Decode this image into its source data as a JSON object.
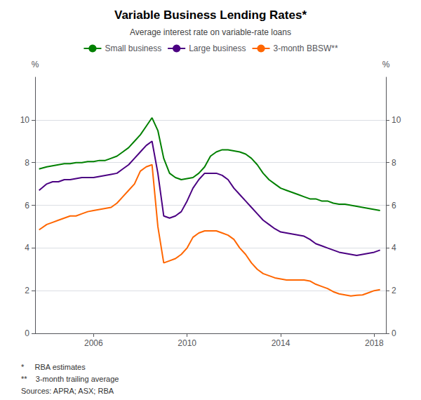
{
  "chart_data": {
    "type": "line",
    "title": "Variable Business Lending Rates*",
    "subtitle": "Average interest rate on variable-rate loans",
    "ylabel": "%",
    "y2label": "%",
    "footnotes": [
      "*     RBA estimates",
      "**    3-month trailing average",
      "Sources: APRA; ASX; RBA"
    ],
    "xlim": [
      2003.5,
      2018.5
    ],
    "xticks": [
      2006,
      2010,
      2014,
      2018
    ],
    "ylim": [
      0,
      12
    ],
    "yticks": [
      0,
      2,
      4,
      6,
      8,
      10
    ],
    "y2lim": [
      0,
      12
    ],
    "y2ticks": [
      0,
      2,
      4,
      6,
      8,
      10
    ],
    "grid": true,
    "legend": "top",
    "x": [
      2003.67,
      2004.0,
      2004.25,
      2004.5,
      2004.75,
      2005.0,
      2005.25,
      2005.5,
      2005.75,
      2006.0,
      2006.25,
      2006.5,
      2006.75,
      2007.0,
      2007.25,
      2007.5,
      2007.75,
      2008.0,
      2008.25,
      2008.5,
      2008.75,
      2009.0,
      2009.25,
      2009.5,
      2009.75,
      2010.0,
      2010.25,
      2010.5,
      2010.75,
      2011.0,
      2011.25,
      2011.5,
      2011.75,
      2012.0,
      2012.25,
      2012.5,
      2012.75,
      2013.0,
      2013.25,
      2013.5,
      2013.75,
      2014.0,
      2014.25,
      2014.5,
      2014.75,
      2015.0,
      2015.25,
      2015.5,
      2015.75,
      2016.0,
      2016.25,
      2016.5,
      2016.75,
      2017.0,
      2017.25,
      2017.5,
      2017.75,
      2018.0,
      2018.25
    ],
    "series": [
      {
        "name": "Small business",
        "color": "#008000",
        "values": [
          7.7,
          7.8,
          7.85,
          7.9,
          7.95,
          7.95,
          8.0,
          8.0,
          8.05,
          8.05,
          8.1,
          8.1,
          8.2,
          8.3,
          8.5,
          8.7,
          9.0,
          9.3,
          9.7,
          10.1,
          9.5,
          8.2,
          7.5,
          7.3,
          7.2,
          7.25,
          7.3,
          7.5,
          7.8,
          8.3,
          8.5,
          8.6,
          8.6,
          8.55,
          8.5,
          8.4,
          8.2,
          7.9,
          7.5,
          7.2,
          7.0,
          6.8,
          6.7,
          6.6,
          6.5,
          6.4,
          6.3,
          6.3,
          6.2,
          6.2,
          6.1,
          6.05,
          6.05,
          6.0,
          5.95,
          5.9,
          5.85,
          5.8,
          5.75
        ]
      },
      {
        "name": "Large business",
        "color": "#4B0082",
        "values": [
          6.7,
          7.0,
          7.1,
          7.1,
          7.2,
          7.2,
          7.25,
          7.3,
          7.3,
          7.3,
          7.35,
          7.4,
          7.45,
          7.5,
          7.7,
          7.9,
          8.2,
          8.5,
          8.8,
          9.0,
          7.5,
          5.5,
          5.4,
          5.5,
          5.7,
          6.2,
          6.8,
          7.2,
          7.5,
          7.5,
          7.5,
          7.4,
          7.2,
          6.8,
          6.5,
          6.2,
          5.9,
          5.6,
          5.3,
          5.1,
          4.9,
          4.75,
          4.7,
          4.65,
          4.6,
          4.55,
          4.4,
          4.2,
          4.1,
          4.0,
          3.9,
          3.8,
          3.75,
          3.7,
          3.65,
          3.7,
          3.75,
          3.8,
          3.9
        ]
      },
      {
        "name": "3-month BBSW**",
        "color": "#FF6600",
        "values": [
          4.85,
          5.1,
          5.2,
          5.3,
          5.4,
          5.5,
          5.5,
          5.6,
          5.7,
          5.75,
          5.8,
          5.85,
          5.9,
          6.1,
          6.4,
          6.7,
          7.0,
          7.6,
          7.8,
          7.9,
          5.0,
          3.3,
          3.4,
          3.5,
          3.7,
          4.0,
          4.5,
          4.7,
          4.8,
          4.8,
          4.8,
          4.7,
          4.6,
          4.4,
          4.0,
          3.7,
          3.3,
          3.0,
          2.8,
          2.7,
          2.6,
          2.55,
          2.5,
          2.5,
          2.5,
          2.5,
          2.45,
          2.3,
          2.2,
          2.1,
          1.95,
          1.85,
          1.8,
          1.75,
          1.78,
          1.8,
          1.9,
          2.0,
          2.05
        ]
      }
    ]
  }
}
